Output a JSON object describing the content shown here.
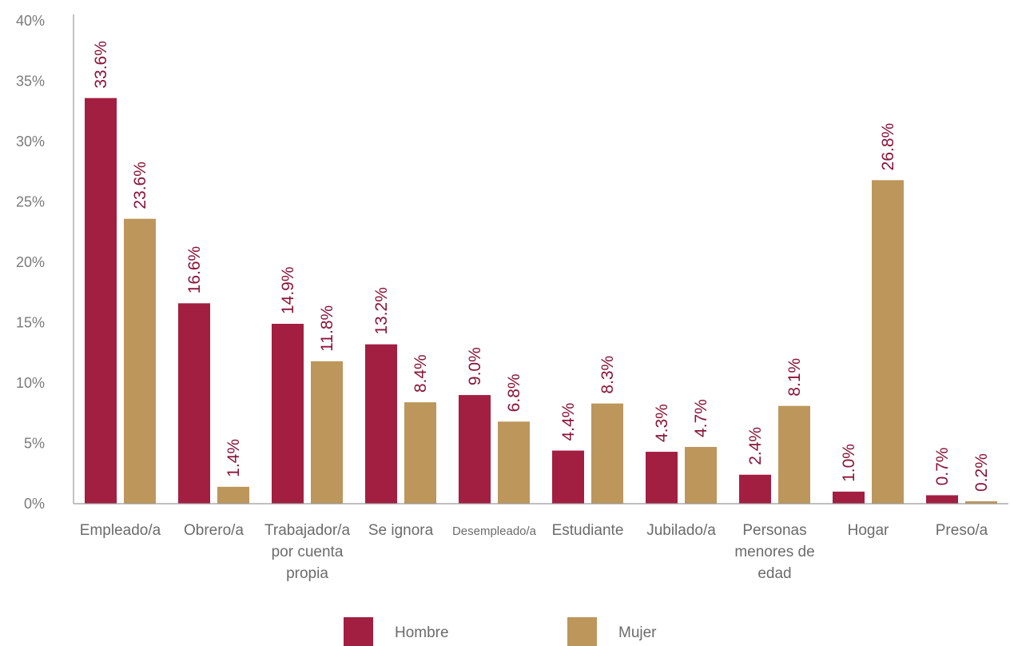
{
  "chart_data": {
    "type": "bar",
    "categories": [
      [
        "Empleado/a"
      ],
      [
        "Obrero/a"
      ],
      [
        "Trabajador/a",
        "por cuenta",
        "propia"
      ],
      [
        "Se ignora"
      ],
      [
        "Desempleado/a"
      ],
      [
        "Estudiante"
      ],
      [
        "Jubilado/a"
      ],
      [
        "Personas",
        "menores de",
        "edad"
      ],
      [
        "Hogar"
      ],
      [
        "Preso/a"
      ]
    ],
    "series": [
      {
        "name": "Hombre",
        "color": "#a21f42",
        "values": [
          33.6,
          16.6,
          14.9,
          13.2,
          9.0,
          4.4,
          4.3,
          2.4,
          1.0,
          0.7
        ],
        "labels": [
          "33.6%",
          "16.6%",
          "14.9%",
          "13.2%",
          "9.0%",
          "4.4%",
          "4.3%",
          "2.4%",
          "1.0%",
          "0.7%"
        ]
      },
      {
        "name": "Mujer",
        "color": "#bd965b",
        "values": [
          23.6,
          1.4,
          11.8,
          8.4,
          6.8,
          8.3,
          4.7,
          8.1,
          26.8,
          0.2
        ],
        "labels": [
          "23.6%",
          "1.4%",
          "11.8%",
          "8.4%",
          "6.8%",
          "8.3%",
          "4.7%",
          "8.1%",
          "26.8%",
          "0.2%"
        ]
      }
    ],
    "ylim": [
      0,
      40
    ],
    "yticks": [
      0,
      5,
      10,
      15,
      20,
      25,
      30,
      35,
      40
    ],
    "ytick_labels": [
      "0%",
      "5%",
      "10%",
      "15%",
      "20%",
      "25%",
      "30%",
      "35%",
      "40%"
    ],
    "data_label_color": "#8a1538",
    "axis_color": "#9a9a9a",
    "grid": false,
    "legend_position": "bottom"
  }
}
